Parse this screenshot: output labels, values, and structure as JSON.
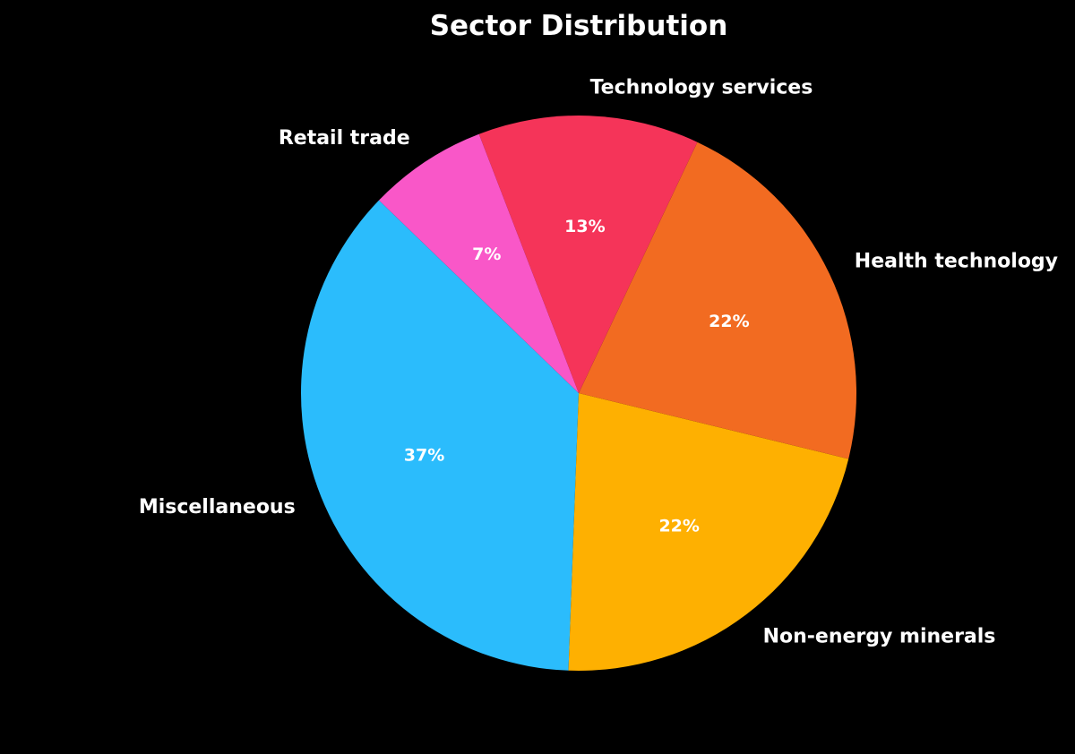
{
  "chart_data": {
    "type": "pie",
    "title": "Sector Distribution",
    "background": "#000000",
    "text_color": "#ffffff",
    "slices": [
      {
        "label": "Miscellaneous",
        "value": 37,
        "pct_label": "37%",
        "color": "#2bbcfc"
      },
      {
        "label": "Non-energy minerals",
        "value": 22,
        "pct_label": "22%",
        "color": "#feb001"
      },
      {
        "label": "Health technology",
        "value": 22,
        "pct_label": "22%",
        "color": "#f26b21"
      },
      {
        "label": "Technology services",
        "value": 13,
        "pct_label": "13%",
        "color": "#f53459"
      },
      {
        "label": "Retail trade",
        "value": 7,
        "pct_label": "7%",
        "color": "#f957c8"
      }
    ]
  }
}
